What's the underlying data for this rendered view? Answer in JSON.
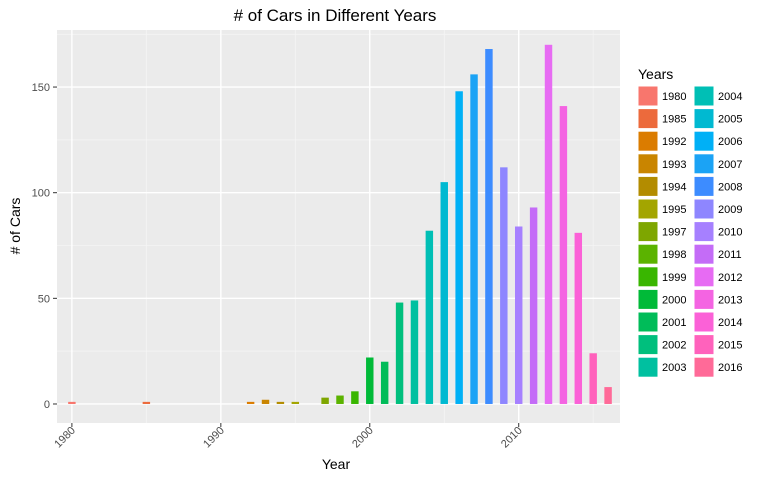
{
  "chart_data": {
    "type": "bar",
    "title": "# of Cars in Different Years",
    "xlabel": "Year",
    "ylabel": "# of Cars",
    "xlim": [
      1979,
      2016.8
    ],
    "ylim": [
      -9,
      177
    ],
    "x_ticks": [
      1980,
      1990,
      2000,
      2010
    ],
    "y_ticks": [
      0,
      50,
      100,
      150
    ],
    "grid": true,
    "legend": {
      "title": "Years",
      "placement": "right"
    },
    "series": [
      {
        "name": "1980",
        "x": 1980,
        "value": 1,
        "color": "#F8766D"
      },
      {
        "name": "1985",
        "x": 1985,
        "value": 1,
        "color": "#EC6A3C"
      },
      {
        "name": "1992",
        "x": 1992,
        "value": 1,
        "color": "#DB7C00"
      },
      {
        "name": "1993",
        "x": 1993,
        "value": 2,
        "color": "#C98500"
      },
      {
        "name": "1994",
        "x": 1994,
        "value": 1,
        "color": "#B38C00"
      },
      {
        "name": "1995",
        "x": 1995,
        "value": 1,
        "color": "#A3A500"
      },
      {
        "name": "1997",
        "x": 1997,
        "value": 3,
        "color": "#7EA600"
      },
      {
        "name": "1998",
        "x": 1998,
        "value": 4,
        "color": "#5BB300"
      },
      {
        "name": "1999",
        "x": 1999,
        "value": 6,
        "color": "#39B600"
      },
      {
        "name": "2000",
        "x": 2000,
        "value": 22,
        "color": "#00BA38"
      },
      {
        "name": "2001",
        "x": 2001,
        "value": 20,
        "color": "#00BC59"
      },
      {
        "name": "2002",
        "x": 2002,
        "value": 48,
        "color": "#00BF7D"
      },
      {
        "name": "2003",
        "x": 2003,
        "value": 49,
        "color": "#00C0A0"
      },
      {
        "name": "2004",
        "x": 2004,
        "value": 82,
        "color": "#00BFB5"
      },
      {
        "name": "2005",
        "x": 2005,
        "value": 105,
        "color": "#00B9D1"
      },
      {
        "name": "2006",
        "x": 2006,
        "value": 148,
        "color": "#00B0F6"
      },
      {
        "name": "2007",
        "x": 2007,
        "value": 156,
        "color": "#1BA3F5"
      },
      {
        "name": "2008",
        "x": 2008,
        "value": 168,
        "color": "#3D8CFF"
      },
      {
        "name": "2009",
        "x": 2009,
        "value": 112,
        "color": "#8E86FF"
      },
      {
        "name": "2010",
        "x": 2010,
        "value": 84,
        "color": "#A680FF"
      },
      {
        "name": "2011",
        "x": 2011,
        "value": 93,
        "color": "#C46CF7"
      },
      {
        "name": "2012",
        "x": 2012,
        "value": 170,
        "color": "#E76BF3"
      },
      {
        "name": "2013",
        "x": 2013,
        "value": 141,
        "color": "#F464E2"
      },
      {
        "name": "2014",
        "x": 2014,
        "value": 81,
        "color": "#FB61D7"
      },
      {
        "name": "2015",
        "x": 2015,
        "value": 24,
        "color": "#FF62BC"
      },
      {
        "name": "2016",
        "x": 2016,
        "value": 8,
        "color": "#FF6A98"
      }
    ]
  }
}
